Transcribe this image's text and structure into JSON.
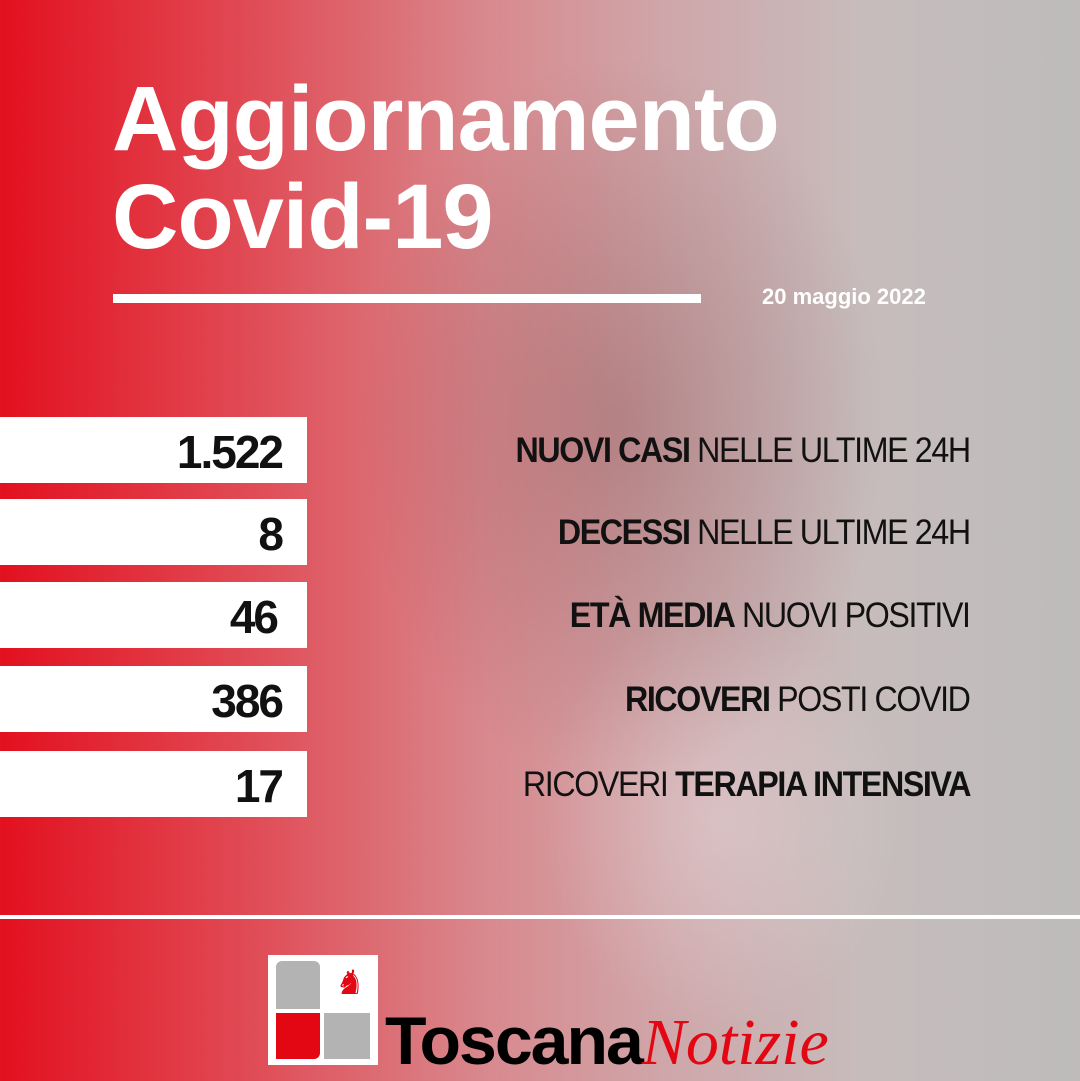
{
  "header": {
    "title_line1": "Aggiornamento",
    "title_line2": "Covid-19",
    "date": "20 maggio 2022"
  },
  "stats": [
    {
      "value": "1.522",
      "label_bold": "NUOVI CASI",
      "label_regular": "NELLE ULTIME 24H"
    },
    {
      "value": "8",
      "label_bold": "DECESSI",
      "label_regular": "NELLE ULTIME 24H"
    },
    {
      "value": "46",
      "label_bold": "ETÀ MEDIA",
      "label_regular": "NUOVI POSITIVI"
    },
    {
      "value": "386",
      "label_bold": "RICOVERI",
      "label_regular": "POSTI COVID"
    },
    {
      "value": "17",
      "label_regular_first": "RICOVERI",
      "label_bold": "TERAPIA INTENSIVA"
    }
  ],
  "footer": {
    "brand_main": "Toscana",
    "brand_italic": "Notizie"
  },
  "colors": {
    "accent": "#e3101f",
    "logo_red": "#e30613"
  }
}
